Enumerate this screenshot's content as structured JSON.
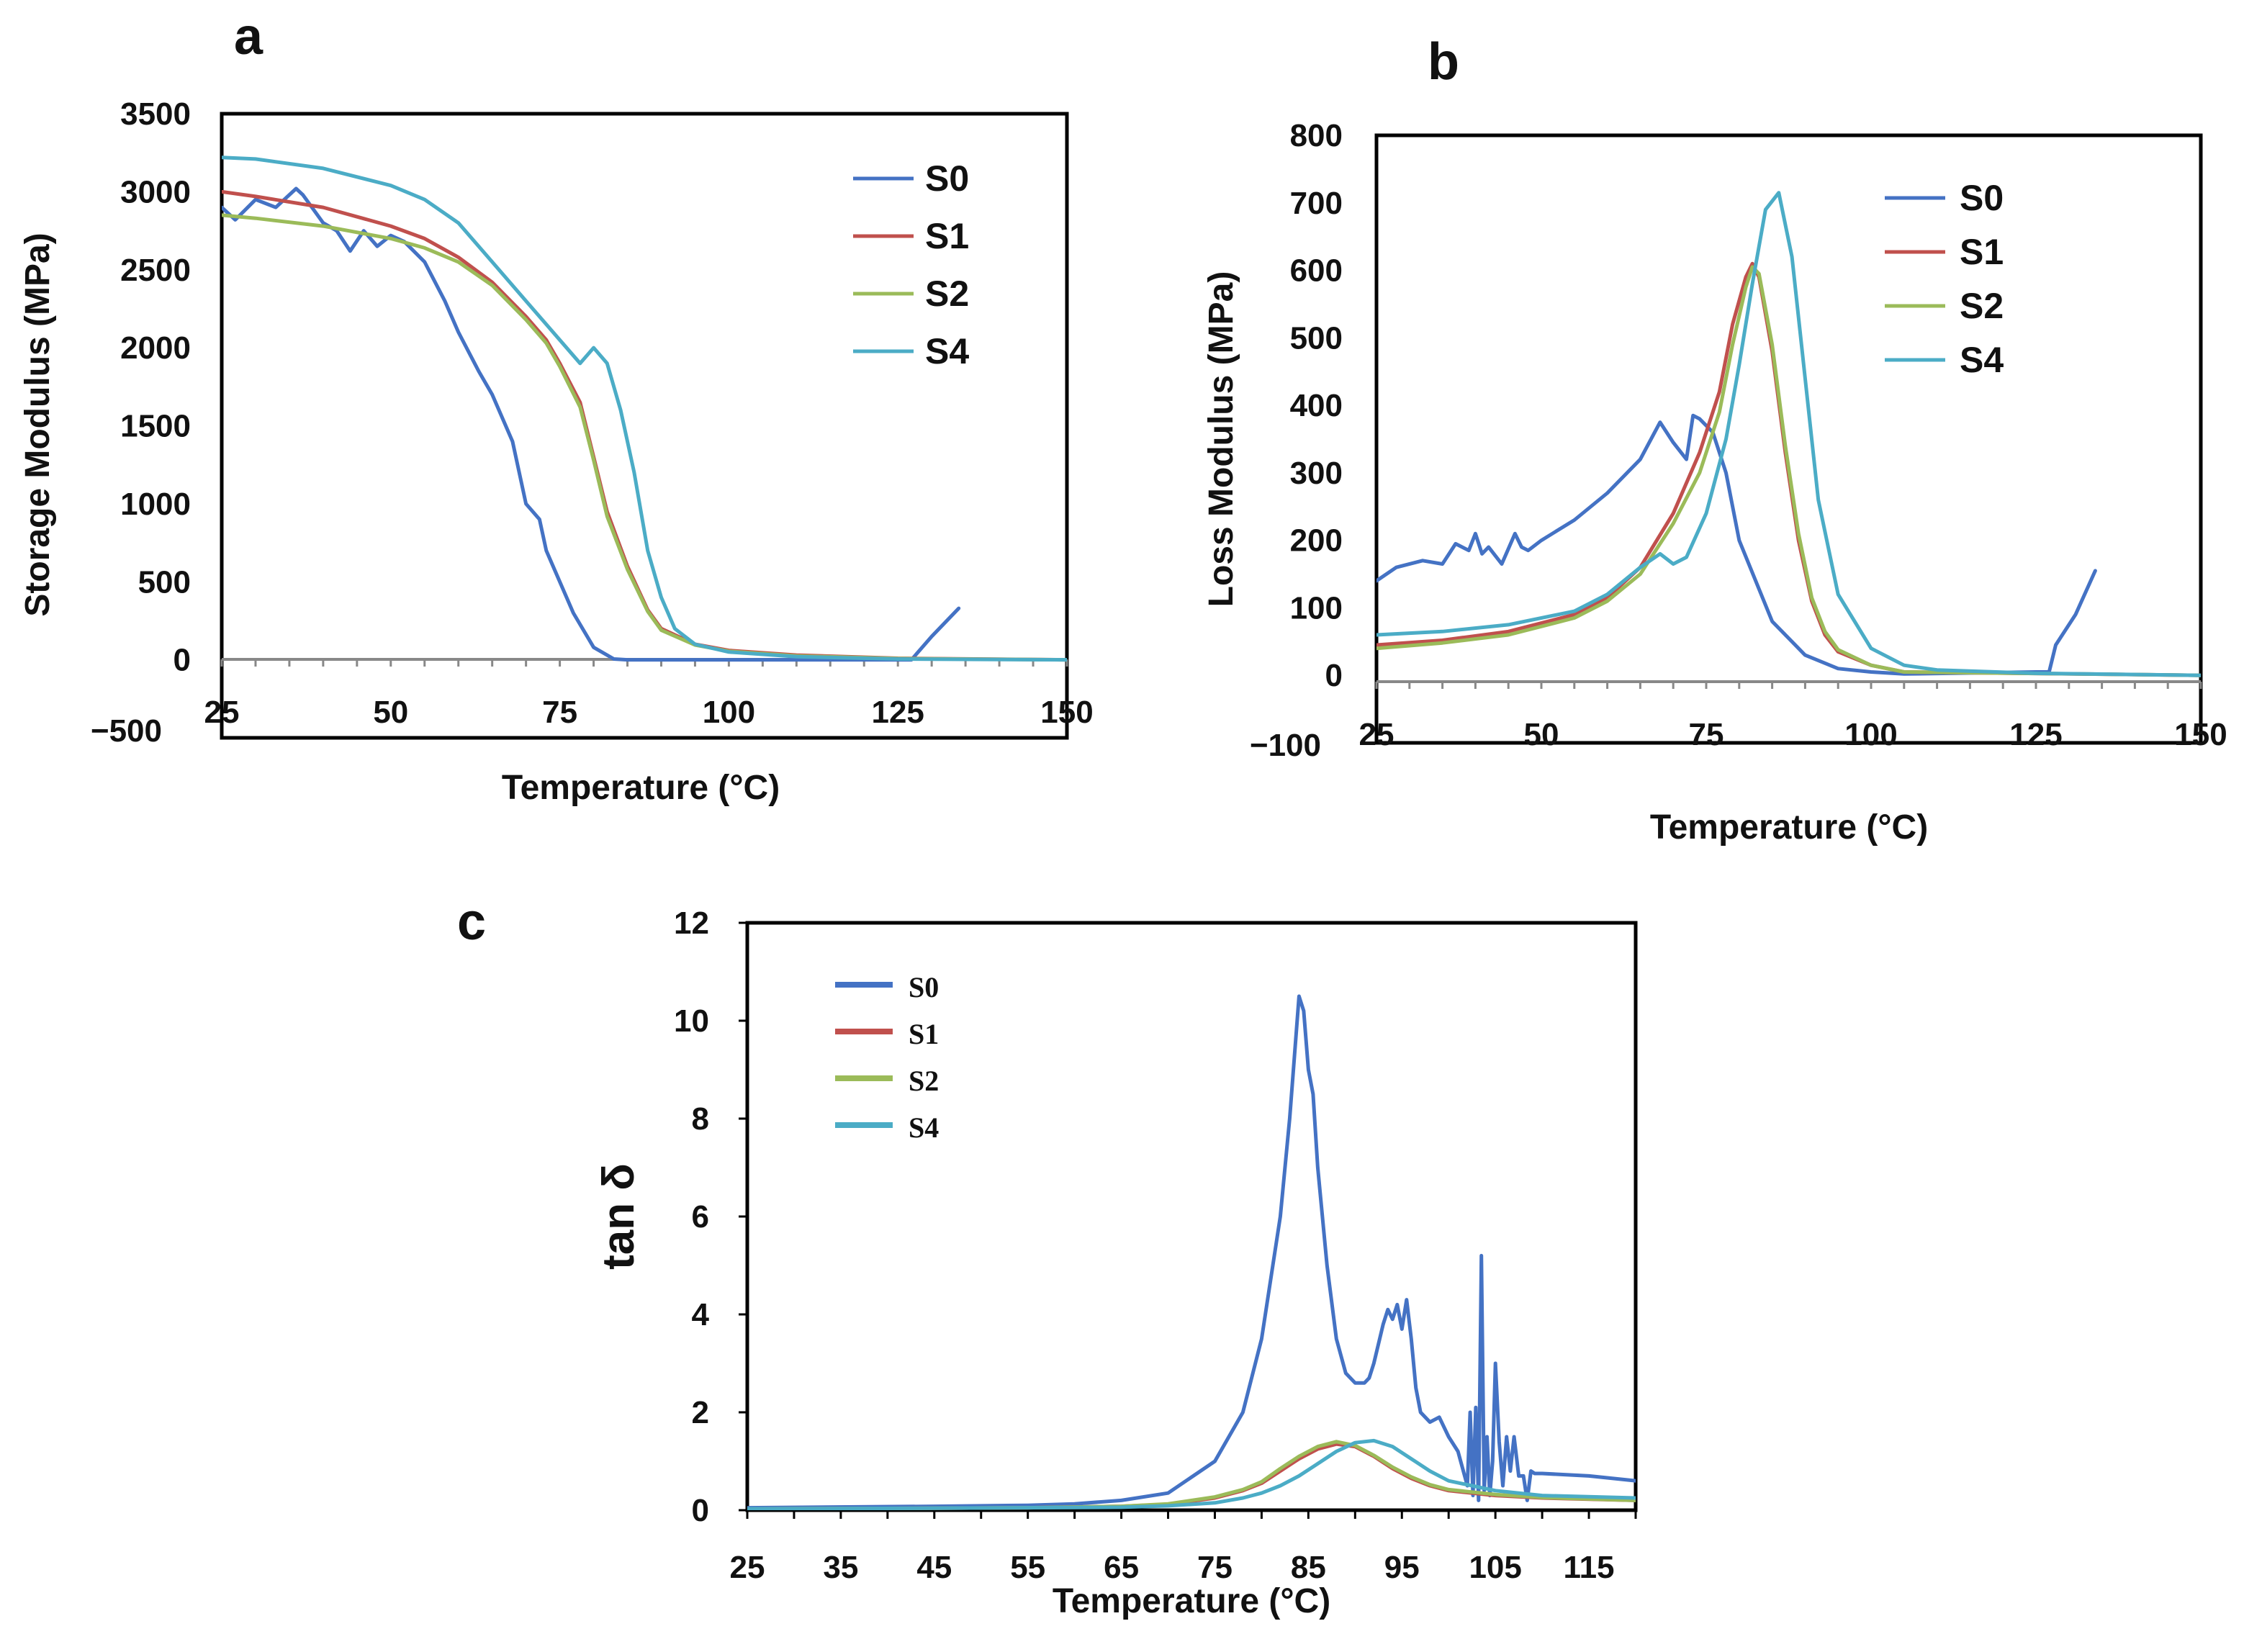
{
  "chart_data": [
    {
      "id": "a",
      "type": "line",
      "panel_label": "a",
      "title": "",
      "xlabel": "Temperature (°C)",
      "ylabel": "Storage Modulus (MPa)",
      "xlim": [
        25,
        150
      ],
      "ylim": [
        -500,
        3500
      ],
      "xticks": [
        "25",
        "50",
        "75",
        "100",
        "125",
        "150"
      ],
      "yticks": [
        "−500",
        "0",
        "500",
        "1000",
        "1500",
        "2000",
        "2500",
        "3000",
        "3500"
      ],
      "legend_position": "top-right",
      "series": [
        {
          "name": "S0",
          "color": "#4472C4",
          "x": [
            25,
            27,
            30,
            33,
            36,
            37,
            40,
            42,
            44,
            46,
            48,
            50,
            52,
            55,
            58,
            60,
            63,
            65,
            68,
            70,
            72,
            73,
            75,
            77,
            80,
            83,
            85,
            100,
            127,
            130,
            134
          ],
          "y": [
            2900,
            2820,
            2950,
            2900,
            3020,
            2980,
            2800,
            2750,
            2620,
            2750,
            2650,
            2720,
            2680,
            2550,
            2300,
            2100,
            1850,
            1700,
            1400,
            1000,
            900,
            700,
            500,
            300,
            80,
            5,
            0,
            0,
            0,
            150,
            330
          ]
        },
        {
          "name": "S1",
          "color": "#C0504D",
          "x": [
            25,
            30,
            40,
            50,
            55,
            60,
            65,
            70,
            73,
            75,
            78,
            80,
            82,
            85,
            88,
            90,
            95,
            100,
            110,
            125,
            150
          ],
          "y": [
            3000,
            2970,
            2900,
            2780,
            2700,
            2580,
            2420,
            2200,
            2050,
            1900,
            1650,
            1300,
            950,
            600,
            320,
            200,
            100,
            60,
            30,
            10,
            0
          ]
        },
        {
          "name": "S2",
          "color": "#9BBB59",
          "x": [
            25,
            30,
            40,
            50,
            55,
            60,
            65,
            70,
            73,
            75,
            78,
            80,
            82,
            85,
            88,
            90,
            95,
            100,
            110,
            125,
            150
          ],
          "y": [
            2850,
            2830,
            2780,
            2700,
            2640,
            2550,
            2400,
            2180,
            2030,
            1880,
            1620,
            1280,
            920,
            580,
            310,
            190,
            95,
            55,
            25,
            8,
            0
          ]
        },
        {
          "name": "S4",
          "color": "#4BACC6",
          "x": [
            25,
            30,
            40,
            50,
            55,
            60,
            65,
            70,
            75,
            78,
            80,
            82,
            84,
            86,
            88,
            90,
            92,
            95,
            100,
            110,
            125,
            150
          ],
          "y": [
            3220,
            3210,
            3150,
            3040,
            2950,
            2800,
            2550,
            2300,
            2050,
            1900,
            2000,
            1900,
            1600,
            1200,
            700,
            400,
            200,
            100,
            50,
            20,
            5,
            0
          ]
        }
      ]
    },
    {
      "id": "b",
      "type": "line",
      "panel_label": "b",
      "title": "",
      "xlabel": "Temperature (°C)",
      "ylabel": "Loss Modulus  (MPa)",
      "xlim": [
        25,
        150
      ],
      "ylim": [
        -100,
        800
      ],
      "xticks": [
        "25",
        "50",
        "75",
        "100",
        "125",
        "150"
      ],
      "yticks": [
        "−100",
        "0",
        "100",
        "200",
        "300",
        "400",
        "500",
        "600",
        "700",
        "800"
      ],
      "legend_position": "top-right",
      "series": [
        {
          "name": "S0",
          "color": "#4472C4",
          "x": [
            25,
            28,
            32,
            35,
            37,
            39,
            40,
            41,
            42,
            44,
            46,
            47,
            48,
            50,
            55,
            60,
            65,
            68,
            70,
            72,
            73,
            74,
            76,
            78,
            80,
            85,
            90,
            95,
            100,
            105,
            125,
            127,
            128,
            131,
            134
          ],
          "y": [
            140,
            160,
            170,
            165,
            195,
            185,
            210,
            180,
            190,
            165,
            210,
            190,
            185,
            200,
            230,
            270,
            320,
            375,
            345,
            320,
            385,
            380,
            360,
            300,
            200,
            80,
            30,
            10,
            5,
            2,
            5,
            5,
            45,
            90,
            155
          ]
        },
        {
          "name": "S1",
          "color": "#C0504D",
          "x": [
            25,
            35,
            45,
            55,
            60,
            65,
            70,
            74,
            77,
            79,
            81,
            82,
            83,
            85,
            87,
            89,
            91,
            93,
            95,
            100,
            105,
            150
          ],
          "y": [
            45,
            52,
            65,
            90,
            115,
            160,
            240,
            330,
            420,
            520,
            590,
            610,
            590,
            480,
            330,
            200,
            110,
            60,
            35,
            15,
            5,
            0
          ]
        },
        {
          "name": "S2",
          "color": "#9BBB59",
          "x": [
            25,
            35,
            45,
            55,
            60,
            65,
            70,
            74,
            77,
            79,
            81,
            82,
            83,
            85,
            87,
            89,
            91,
            93,
            95,
            100,
            105,
            150
          ],
          "y": [
            40,
            48,
            60,
            85,
            110,
            150,
            225,
            300,
            390,
            490,
            575,
            605,
            595,
            490,
            340,
            210,
            115,
            65,
            38,
            15,
            5,
            0
          ]
        },
        {
          "name": "S4",
          "color": "#4BACC6",
          "x": [
            25,
            35,
            45,
            55,
            60,
            65,
            68,
            70,
            72,
            75,
            78,
            80,
            82,
            84,
            86,
            88,
            90,
            92,
            95,
            100,
            105,
            110,
            125,
            150
          ],
          "y": [
            60,
            65,
            75,
            95,
            120,
            160,
            180,
            165,
            175,
            240,
            350,
            460,
            580,
            690,
            715,
            620,
            440,
            260,
            120,
            40,
            15,
            8,
            3,
            0
          ]
        }
      ]
    },
    {
      "id": "c",
      "type": "line",
      "panel_label": "c",
      "title": "",
      "xlabel": "Temperature (°C)",
      "ylabel": "tan δ",
      "xlim": [
        25,
        120
      ],
      "ylim": [
        0,
        12
      ],
      "xticks": [
        "25",
        "35",
        "45",
        "55",
        "65",
        "75",
        "85",
        "95",
        "105",
        "115"
      ],
      "yticks": [
        "0",
        "2",
        "4",
        "6",
        "8",
        "10",
        "12"
      ],
      "legend_position": "top-left",
      "series": [
        {
          "name": "S0",
          "color": "#4472C4",
          "x": [
            25,
            45,
            55,
            60,
            65,
            70,
            75,
            78,
            80,
            82,
            83,
            84,
            84.5,
            85,
            85.5,
            86,
            87,
            88,
            89,
            90,
            91,
            91.5,
            92,
            92.5,
            93,
            93.5,
            94,
            94.5,
            95,
            95.5,
            96,
            96.5,
            97,
            98,
            99,
            100,
            101,
            102,
            102.3,
            102.6,
            102.9,
            103.2,
            103.5,
            103.8,
            104.1,
            104.4,
            104.7,
            105,
            105.4,
            105.8,
            106.2,
            106.6,
            107,
            107.5,
            108,
            108.4,
            108.8,
            109.2,
            110,
            115,
            120
          ],
          "y": [
            0.05,
            0.08,
            0.1,
            0.13,
            0.2,
            0.35,
            1.0,
            2.0,
            3.5,
            6.0,
            8.0,
            10.5,
            10.2,
            9.0,
            8.5,
            7.0,
            5.0,
            3.5,
            2.8,
            2.6,
            2.6,
            2.7,
            3.0,
            3.4,
            3.8,
            4.1,
            3.9,
            4.2,
            3.7,
            4.3,
            3.5,
            2.5,
            2.0,
            1.8,
            1.9,
            1.5,
            1.2,
            0.5,
            2.0,
            0.3,
            2.1,
            0.2,
            5.2,
            0.4,
            1.5,
            0.3,
            1.0,
            3.0,
            1.4,
            0.5,
            1.5,
            0.8,
            1.5,
            0.7,
            0.7,
            0.2,
            0.8,
            0.75,
            0.75,
            0.7,
            0.6
          ]
        },
        {
          "name": "S1",
          "color": "#C0504D",
          "x": [
            25,
            45,
            55,
            65,
            70,
            75,
            78,
            80,
            82,
            84,
            86,
            88,
            90,
            92,
            94,
            96,
            98,
            100,
            105,
            110,
            120
          ],
          "y": [
            0.03,
            0.04,
            0.05,
            0.08,
            0.12,
            0.25,
            0.4,
            0.55,
            0.8,
            1.05,
            1.25,
            1.35,
            1.3,
            1.1,
            0.85,
            0.65,
            0.5,
            0.4,
            0.3,
            0.25,
            0.2
          ]
        },
        {
          "name": "S2",
          "color": "#9BBB59",
          "x": [
            25,
            45,
            55,
            65,
            70,
            75,
            78,
            80,
            82,
            84,
            86,
            88,
            90,
            92,
            94,
            96,
            98,
            100,
            105,
            110,
            120
          ],
          "y": [
            0.03,
            0.04,
            0.05,
            0.08,
            0.13,
            0.27,
            0.42,
            0.58,
            0.85,
            1.1,
            1.3,
            1.4,
            1.32,
            1.12,
            0.88,
            0.68,
            0.52,
            0.42,
            0.32,
            0.26,
            0.2
          ]
        },
        {
          "name": "S4",
          "color": "#4BACC6",
          "x": [
            25,
            45,
            55,
            65,
            70,
            75,
            78,
            80,
            82,
            84,
            86,
            88,
            90,
            92,
            94,
            96,
            98,
            100,
            105,
            110,
            120
          ],
          "y": [
            0.03,
            0.04,
            0.05,
            0.06,
            0.09,
            0.15,
            0.25,
            0.35,
            0.5,
            0.7,
            0.95,
            1.2,
            1.38,
            1.42,
            1.3,
            1.05,
            0.8,
            0.6,
            0.4,
            0.3,
            0.25
          ]
        }
      ]
    }
  ]
}
